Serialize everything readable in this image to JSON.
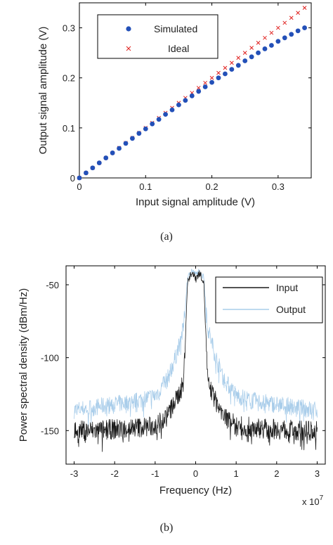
{
  "chart_data": [
    {
      "type": "scatter",
      "caption": "(a)",
      "xlabel": "Input signal amplitude (V)",
      "ylabel": "Output signal amplitude (V)",
      "xlim": [
        0,
        0.35
      ],
      "ylim": [
        0,
        0.35
      ],
      "xticks": [
        "0",
        "0.1",
        "0.2",
        "0.3"
      ],
      "yticks": [
        "0",
        "0.1",
        "0.2",
        "0.3"
      ],
      "legend_position": "top-left",
      "series": [
        {
          "name": "Simulated",
          "color": "#2350b8",
          "marker": "filled-circle",
          "x": [
            0.0,
            0.01,
            0.02,
            0.03,
            0.04,
            0.05,
            0.06,
            0.07,
            0.08,
            0.09,
            0.1,
            0.11,
            0.12,
            0.13,
            0.14,
            0.15,
            0.16,
            0.17,
            0.18,
            0.19,
            0.2,
            0.21,
            0.22,
            0.23,
            0.24,
            0.25,
            0.26,
            0.27,
            0.28,
            0.29,
            0.3,
            0.31,
            0.32,
            0.33,
            0.34
          ],
          "y": [
            0.0,
            0.01,
            0.02,
            0.03,
            0.04,
            0.05,
            0.059,
            0.069,
            0.079,
            0.089,
            0.098,
            0.108,
            0.117,
            0.127,
            0.136,
            0.146,
            0.155,
            0.164,
            0.173,
            0.182,
            0.191,
            0.2,
            0.208,
            0.217,
            0.225,
            0.234,
            0.242,
            0.25,
            0.258,
            0.265,
            0.273,
            0.28,
            0.287,
            0.294,
            0.3
          ]
        },
        {
          "name": "Ideal",
          "color": "#e0201e",
          "marker": "x",
          "x": [
            0.0,
            0.01,
            0.02,
            0.03,
            0.04,
            0.05,
            0.06,
            0.07,
            0.08,
            0.09,
            0.1,
            0.11,
            0.12,
            0.13,
            0.14,
            0.15,
            0.16,
            0.17,
            0.18,
            0.19,
            0.2,
            0.21,
            0.22,
            0.23,
            0.24,
            0.25,
            0.26,
            0.27,
            0.28,
            0.29,
            0.3,
            0.31,
            0.32,
            0.33,
            0.34
          ],
          "y": [
            0.0,
            0.01,
            0.02,
            0.03,
            0.04,
            0.05,
            0.06,
            0.07,
            0.08,
            0.09,
            0.1,
            0.11,
            0.12,
            0.13,
            0.14,
            0.15,
            0.16,
            0.17,
            0.18,
            0.19,
            0.2,
            0.21,
            0.22,
            0.23,
            0.24,
            0.25,
            0.26,
            0.27,
            0.28,
            0.29,
            0.3,
            0.31,
            0.32,
            0.33,
            0.34
          ]
        }
      ]
    },
    {
      "type": "line",
      "caption": "(b)",
      "xlabel": "Frequency (Hz)",
      "ylabel": "Power spectral density (dBm/Hz)",
      "x_multiplier": "x 10",
      "x_multiplier_exp": "7",
      "xlim": [
        -3.2,
        3.2
      ],
      "ylim": [
        -173,
        -37
      ],
      "xticks": [
        "-3",
        "-2",
        "-1",
        "0",
        "1",
        "2",
        "3"
      ],
      "yticks": [
        "-50",
        "-100",
        "-150"
      ],
      "legend_position": "top-right",
      "series": [
        {
          "name": "Input",
          "color": "#1a1a1a",
          "x": [
            -3.0,
            -2.5,
            -2.0,
            -1.5,
            -1.0,
            -0.7,
            -0.5,
            -0.3,
            -0.2,
            -0.1,
            0.0,
            0.1,
            0.2,
            0.3,
            0.5,
            0.7,
            1.0,
            1.5,
            2.0,
            2.5,
            3.0
          ],
          "y": [
            -150,
            -150,
            -149,
            -148,
            -147,
            -140,
            -130,
            -118,
            -48,
            -42,
            -45,
            -42,
            -48,
            -118,
            -130,
            -140,
            -147,
            -148,
            -149,
            -150,
            -150
          ]
        },
        {
          "name": "Output",
          "color": "#a9cdea",
          "x": [
            -3.0,
            -2.5,
            -2.0,
            -1.5,
            -1.0,
            -0.7,
            -0.5,
            -0.3,
            -0.2,
            -0.1,
            0.0,
            0.1,
            0.2,
            0.3,
            0.5,
            0.7,
            1.0,
            1.5,
            2.0,
            2.5,
            3.0
          ],
          "y": [
            -136,
            -134,
            -132,
            -130,
            -126,
            -115,
            -100,
            -80,
            -45,
            -40,
            -43,
            -40,
            -45,
            -80,
            -100,
            -115,
            -126,
            -130,
            -132,
            -134,
            -136
          ]
        }
      ]
    }
  ]
}
